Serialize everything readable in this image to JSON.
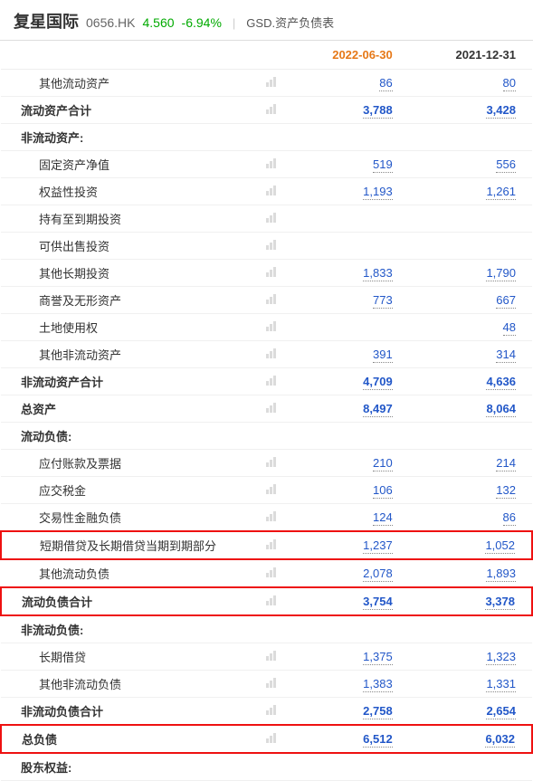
{
  "header": {
    "stock_name": "复星国际",
    "stock_code": "0656.HK",
    "price": "4.560",
    "change": "-6.94%",
    "page_title": "GSD.资产负债表"
  },
  "columns": [
    "",
    "2022-06-30",
    "2021-12-31"
  ],
  "rows": [
    {
      "label": "其他流动资产",
      "indent": 1,
      "bars": true,
      "v1": "86",
      "v2": "80"
    },
    {
      "label": "流动资产合计",
      "indent": 0,
      "bold": true,
      "bars": true,
      "v1": "3,788",
      "v2": "3,428"
    },
    {
      "label": "非流动资产:",
      "section": true
    },
    {
      "label": "固定资产净值",
      "indent": 1,
      "bars": true,
      "v1": "519",
      "v2": "556"
    },
    {
      "label": "权益性投资",
      "indent": 1,
      "bars": true,
      "v1": "1,193",
      "v2": "1,261"
    },
    {
      "label": "持有至到期投资",
      "indent": 1,
      "bars": true,
      "v1": "",
      "v2": ""
    },
    {
      "label": "可供出售投资",
      "indent": 1,
      "bars": true,
      "v1": "",
      "v2": ""
    },
    {
      "label": "其他长期投资",
      "indent": 1,
      "bars": true,
      "v1": "1,833",
      "v2": "1,790"
    },
    {
      "label": "商誉及无形资产",
      "indent": 1,
      "bars": true,
      "v1": "773",
      "v2": "667"
    },
    {
      "label": "土地使用权",
      "indent": 1,
      "bars": true,
      "v1": "",
      "v2": "48"
    },
    {
      "label": "其他非流动资产",
      "indent": 1,
      "bars": true,
      "v1": "391",
      "v2": "314"
    },
    {
      "label": "非流动资产合计",
      "indent": 0,
      "bold": true,
      "bars": true,
      "v1": "4,709",
      "v2": "4,636"
    },
    {
      "label": "总资产",
      "indent": 0,
      "bold": true,
      "bars": true,
      "v1": "8,497",
      "v2": "8,064"
    },
    {
      "label": "流动负债:",
      "section": true
    },
    {
      "label": "应付账款及票据",
      "indent": 1,
      "bars": true,
      "v1": "210",
      "v2": "214"
    },
    {
      "label": "应交税金",
      "indent": 1,
      "bars": true,
      "v1": "106",
      "v2": "132"
    },
    {
      "label": "交易性金融负债",
      "indent": 1,
      "bars": true,
      "v1": "124",
      "v2": "86"
    },
    {
      "label": "短期借贷及长期借贷当期到期部分",
      "indent": 1,
      "bars": true,
      "v1": "1,237",
      "v2": "1,052",
      "highlight": true
    },
    {
      "label": "其他流动负债",
      "indent": 1,
      "bars": true,
      "v1": "2,078",
      "v2": "1,893"
    },
    {
      "label": "流动负债合计",
      "indent": 0,
      "bold": true,
      "bars": true,
      "v1": "3,754",
      "v2": "3,378",
      "highlight": true
    },
    {
      "label": "非流动负债:",
      "section": true
    },
    {
      "label": "长期借贷",
      "indent": 1,
      "bars": true,
      "v1": "1,375",
      "v2": "1,323"
    },
    {
      "label": "其他非流动负债",
      "indent": 1,
      "bars": true,
      "v1": "1,383",
      "v2": "1,331"
    },
    {
      "label": "非流动负债合计",
      "indent": 0,
      "bold": true,
      "bars": true,
      "v1": "2,758",
      "v2": "2,654"
    },
    {
      "label": "总负债",
      "indent": 0,
      "bold": true,
      "bars": true,
      "v1": "6,512",
      "v2": "6,032",
      "highlight": true
    },
    {
      "label": "股东权益:",
      "section": true
    }
  ]
}
